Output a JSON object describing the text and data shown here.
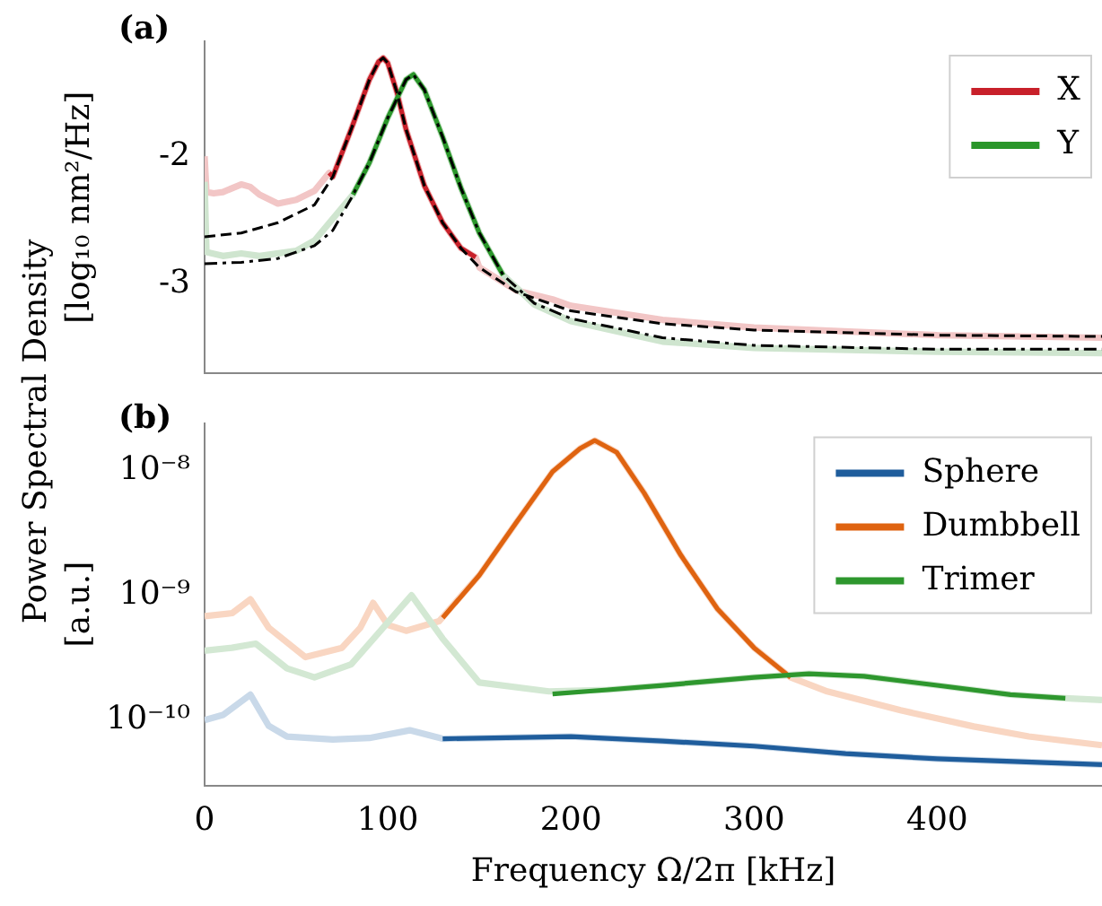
{
  "chart_data": [
    {
      "type": "line",
      "title": "(a)",
      "ylabel": "[log₁₀ nm²/Hz]",
      "annotations": [
        "Power Spectral Density"
      ],
      "xlim": [
        0,
        490
      ],
      "ylim": [
        -3.7,
        -1.1
      ],
      "yticks": [
        {
          "value": -2,
          "label": "-2"
        },
        {
          "value": -3,
          "label": "-3"
        }
      ],
      "tick_labels": "y",
      "grid": false,
      "legend": "top right",
      "marker": "none",
      "series": [
        {
          "color": "#f2c6c6",
          "x": [
            0,
            1,
            5,
            10,
            20,
            25,
            30,
            40,
            50,
            60,
            68,
            70,
            80,
            90,
            95,
            97.5,
            100,
            105,
            110,
            120,
            130,
            140,
            148,
            150,
            170,
            190,
            200,
            250,
            300,
            400,
            490
          ],
          "values": [
            -2,
            -2.28,
            -2.29,
            -2.28,
            -2.22,
            -2.24,
            -2.3,
            -2.37,
            -2.34,
            -2.27,
            -2.13,
            -2.16,
            -1.79,
            -1.4,
            -1.26,
            -1.23,
            -1.27,
            -1.5,
            -1.79,
            -2.23,
            -2.52,
            -2.72,
            -2.79,
            -2.87,
            -3.05,
            -3.12,
            -3.17,
            -3.28,
            -3.34,
            -3.4,
            -3.42
          ]
        },
        {
          "color": "#cfe5cf",
          "x": [
            0,
            1,
            10,
            20,
            30,
            50,
            60,
            81,
            90,
            100,
            110,
            114,
            120,
            130,
            140,
            150,
            163,
            180,
            200,
            250,
            300,
            400,
            490
          ],
          "values": [
            -2.2,
            -2.75,
            -2.78,
            -2.76,
            -2.78,
            -2.74,
            -2.66,
            -2.3,
            -2.05,
            -1.7,
            -1.4,
            -1.36,
            -1.48,
            -1.85,
            -2.25,
            -2.6,
            -2.93,
            -3.16,
            -3.29,
            -3.45,
            -3.5,
            -3.53,
            -3.54
          ]
        },
        {
          "name": "X",
          "color": "#c8202a",
          "x": [
            68,
            70,
            80,
            90,
            95,
            97.5,
            100,
            105,
            110,
            120,
            130,
            140,
            148
          ],
          "values": [
            -2.13,
            -2.16,
            -1.79,
            -1.4,
            -1.26,
            -1.23,
            -1.27,
            -1.5,
            -1.79,
            -2.23,
            -2.52,
            -2.72,
            -2.79
          ]
        },
        {
          "name": "Y",
          "color": "#2a962a",
          "x": [
            81,
            90,
            100,
            110,
            114,
            120,
            130,
            140,
            150,
            163
          ],
          "values": [
            -2.3,
            -2.05,
            -1.7,
            -1.4,
            -1.36,
            -1.48,
            -1.85,
            -2.25,
            -2.6,
            -2.93
          ]
        },
        {
          "color": "#000000",
          "line_style": "dashed",
          "x": [
            0,
            20,
            40,
            60,
            70,
            80,
            90,
            95,
            97.5,
            100,
            105,
            110,
            120,
            130,
            140,
            150,
            170,
            200,
            250,
            300,
            400,
            490
          ],
          "values": [
            -2.63,
            -2.6,
            -2.52,
            -2.38,
            -2.16,
            -1.79,
            -1.4,
            -1.26,
            -1.23,
            -1.27,
            -1.5,
            -1.79,
            -2.23,
            -2.52,
            -2.72,
            -2.87,
            -3.06,
            -3.21,
            -3.31,
            -3.36,
            -3.4,
            -3.41
          ]
        },
        {
          "color": "#000000",
          "line_style": "dashdot",
          "x": [
            0,
            20,
            40,
            60,
            70,
            80,
            90,
            100,
            110,
            114,
            120,
            130,
            140,
            150,
            163,
            180,
            200,
            250,
            300,
            400,
            490
          ],
          "values": [
            -2.84,
            -2.83,
            -2.8,
            -2.7,
            -2.58,
            -2.33,
            -2.05,
            -1.7,
            -1.4,
            -1.36,
            -1.48,
            -1.85,
            -2.25,
            -2.6,
            -2.93,
            -3.15,
            -3.27,
            -3.42,
            -3.48,
            -3.51,
            -3.51
          ]
        }
      ]
    },
    {
      "type": "line",
      "title": "(b)",
      "xlabel": "Frequency Ω/2π [kHz]",
      "ylabel": "[a.u.]",
      "xlim": [
        0,
        490
      ],
      "xticks": [
        0,
        100,
        200,
        300,
        400
      ],
      "ylim": [
        3e-11,
        2.4e-08
      ],
      "yticks": [
        {
          "value": 1e-10,
          "label": "10⁻¹⁰"
        },
        {
          "value": 1e-09,
          "label": "10⁻⁹"
        },
        {
          "value": 1e-08,
          "label": "10⁻⁸"
        }
      ],
      "log": "y",
      "grid": false,
      "legend": "top right",
      "marker": "none",
      "series": [
        {
          "color": "#c9d9e9",
          "x": [
            0,
            10,
            25,
            35,
            45,
            70,
            90,
            112,
            130,
            200,
            250,
            300,
            350,
            400,
            490
          ],
          "values": [
            1e-10,
            1.1e-10,
            1.6e-10,
            9e-11,
            7.4e-11,
            7e-11,
            7.2e-11,
            8.3e-11,
            7.1e-11,
            7.4e-11,
            6.8e-11,
            6.2e-11,
            5.4e-11,
            4.9e-11,
            4.4e-11
          ]
        },
        {
          "color": "#f9d6c2",
          "x": [
            0,
            15,
            25,
            35,
            55,
            75,
            85,
            92,
            100,
            110,
            128,
            150,
            170,
            190,
            205,
            213,
            225,
            240,
            260,
            280,
            300,
            320,
            340,
            380,
            420,
            450,
            490
          ],
          "values": [
            6.8e-10,
            7.2e-10,
            9.3e-10,
            5.5e-10,
            3.2e-10,
            3.8e-10,
            5.5e-10,
            8.7e-10,
            5.8e-10,
            5.2e-10,
            6.2e-10,
            1.45e-09,
            3.8e-09,
            9.8e-09,
            1.5e-08,
            1.74e-08,
            1.4e-08,
            6.6e-09,
            2.1e-09,
            7.8e-10,
            3.8e-10,
            2.2e-10,
            1.7e-10,
            1.2e-10,
            8.9e-11,
            7.4e-11,
            6.3e-11
          ]
        },
        {
          "color": "#d3e8d3",
          "x": [
            0,
            15,
            28,
            45,
            60,
            80,
            95,
            113,
            130,
            150,
            188,
            220,
            250,
            300,
            330,
            360,
            400,
            440,
            470,
            490
          ],
          "values": [
            3.6e-10,
            3.8e-10,
            4.1e-10,
            2.6e-10,
            2.2e-10,
            2.8e-10,
            5e-10,
            1e-09,
            4.5e-10,
            2e-10,
            1.7e-10,
            1.75e-10,
            1.9e-10,
            2.2e-10,
            2.35e-10,
            2.25e-10,
            1.9e-10,
            1.6e-10,
            1.5e-10,
            1.45e-10
          ]
        },
        {
          "name": "Sphere",
          "color": "#1f5d9c",
          "x": [
            130,
            200,
            250,
            300,
            350,
            400,
            490
          ],
          "values": [
            7.1e-11,
            7.4e-11,
            6.8e-11,
            6.2e-11,
            5.4e-11,
            4.9e-11,
            4.4e-11
          ]
        },
        {
          "name": "Dumbbell",
          "color": "#df6310",
          "x": [
            130,
            150,
            170,
            190,
            205,
            213,
            225,
            240,
            260,
            280,
            300,
            320
          ],
          "values": [
            6.6e-10,
            1.45e-09,
            3.8e-09,
            9.8e-09,
            1.5e-08,
            1.74e-08,
            1.4e-08,
            6.6e-09,
            2.1e-09,
            7.8e-10,
            3.8e-10,
            2.2e-10
          ]
        },
        {
          "name": "Trimer",
          "color": "#2e972e",
          "x": [
            190,
            220,
            250,
            300,
            330,
            360,
            400,
            440,
            470
          ],
          "values": [
            1.62e-10,
            1.75e-10,
            1.9e-10,
            2.2e-10,
            2.35e-10,
            2.25e-10,
            1.9e-10,
            1.6e-10,
            1.5e-10
          ]
        }
      ]
    }
  ]
}
